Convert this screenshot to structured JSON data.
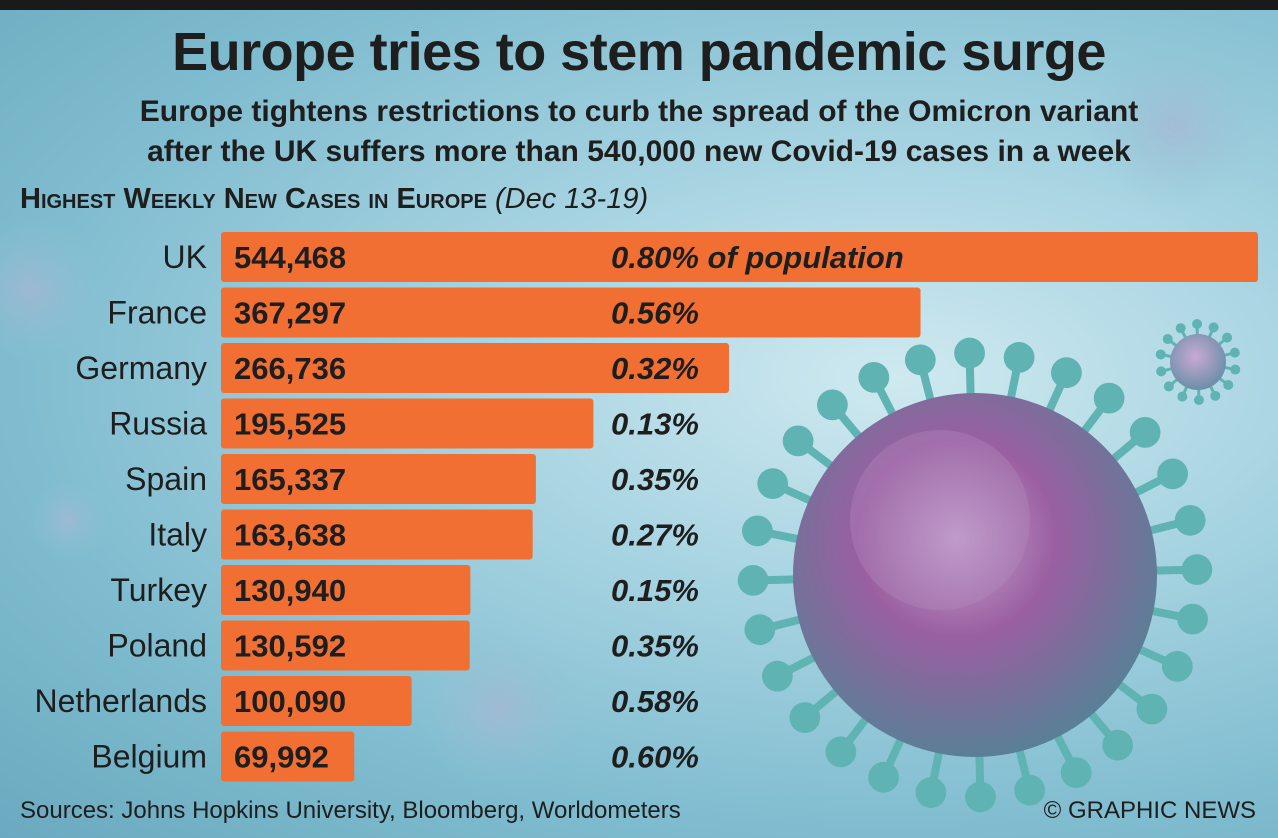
{
  "header": {
    "title": "Europe tries to stem pandemic surge",
    "subtitle_line1": "Europe tightens restrictions to curb the spread of the Omicron variant",
    "subtitle_line2": "after the UK suffers more than 540,000 new Covid-19 cases in a week",
    "chart_heading": "Highest Weekly New Cases in Europe",
    "chart_heading_date": "(Dec 13-19)"
  },
  "footer": {
    "sources": "Sources: Johns Hopkins University, Bloomberg, Worldometers",
    "credit": "© GRAPHIC NEWS"
  },
  "colors": {
    "bar": "#f26f33",
    "text": "#1e1e1e",
    "virus_teal": "#5fb3b3",
    "virus_purple": "#8a4f8f"
  },
  "chart_data": {
    "type": "bar",
    "orientation": "horizontal",
    "title": "Highest Weekly New Cases in Europe",
    "categories": [
      "UK",
      "France",
      "Germany",
      "Russia",
      "Spain",
      "Italy",
      "Turkey",
      "Poland",
      "Netherlands",
      "Belgium"
    ],
    "values": [
      544468,
      367297,
      266736,
      195525,
      165337,
      163638,
      130940,
      130592,
      100090,
      69992
    ],
    "value_labels": [
      "544,468",
      "367,297",
      "266,736",
      "195,525",
      "165,337",
      "163,638",
      "130,940",
      "130,592",
      "100,090",
      "69,992"
    ],
    "percent_labels": [
      "0.80% of population",
      "0.56%",
      "0.32%",
      "0.13%",
      "0.35%",
      "0.27%",
      "0.15%",
      "0.35%",
      "0.58%",
      "0.60%"
    ],
    "xlim": [
      0,
      544468
    ],
    "grid": false,
    "legend": "none"
  }
}
